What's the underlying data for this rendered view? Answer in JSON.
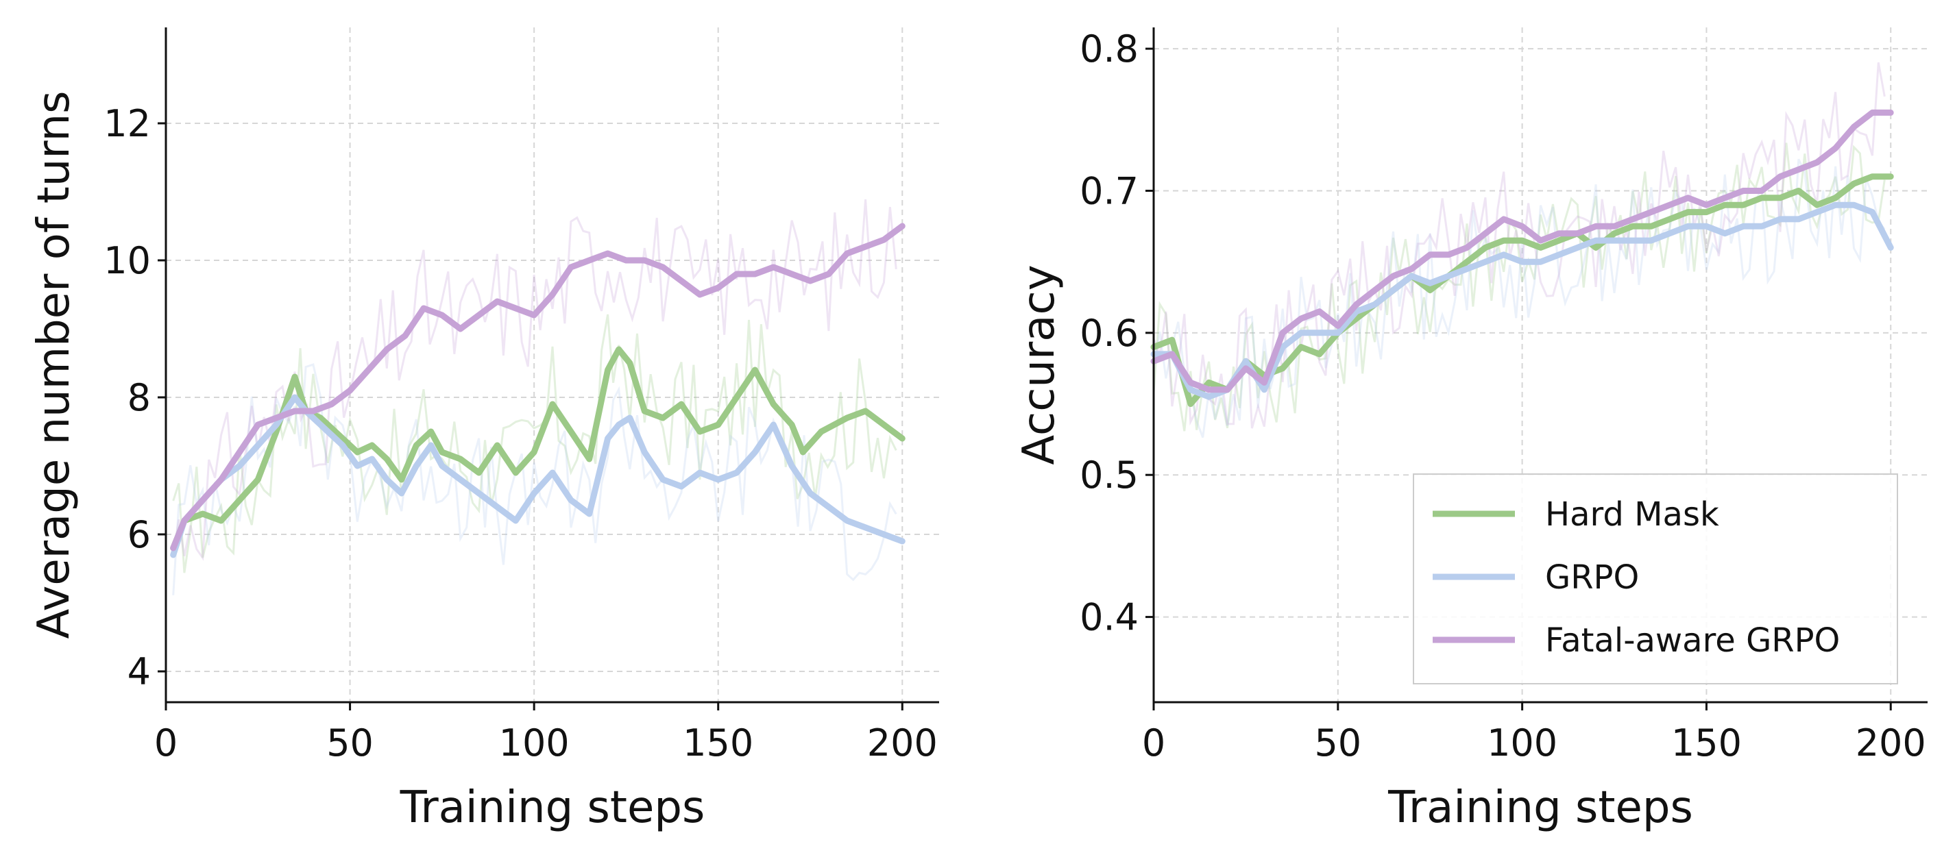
{
  "chart_data": [
    {
      "type": "line",
      "xlabel": "Training steps",
      "ylabel": "Average number of turns",
      "xlim": [
        0,
        210
      ],
      "ylim": [
        3.55,
        13.4
      ],
      "xticks": [
        0,
        50,
        100,
        150,
        200
      ],
      "yticks": [
        4,
        6,
        8,
        10,
        12
      ],
      "grid": true,
      "series": [
        {
          "name": "Hard Mask",
          "color": "#9cc987",
          "x": [
            2,
            5,
            10,
            15,
            20,
            25,
            30,
            35,
            38,
            42,
            48,
            52,
            56,
            60,
            64,
            68,
            72,
            75,
            80,
            85,
            90,
            95,
            100,
            105,
            110,
            115,
            120,
            123,
            126,
            130,
            135,
            140,
            145,
            150,
            155,
            160,
            165,
            170,
            173,
            178,
            185,
            190,
            195,
            200
          ],
          "y": [
            5.8,
            6.2,
            6.3,
            6.2,
            6.5,
            6.8,
            7.5,
            8.3,
            7.8,
            7.7,
            7.4,
            7.2,
            7.3,
            7.1,
            6.8,
            7.3,
            7.5,
            7.2,
            7.1,
            6.9,
            7.3,
            6.9,
            7.2,
            7.9,
            7.5,
            7.1,
            8.4,
            8.7,
            8.5,
            7.8,
            7.7,
            7.9,
            7.5,
            7.6,
            8.0,
            8.4,
            7.9,
            7.6,
            7.2,
            7.5,
            7.7,
            7.8,
            7.6,
            7.4
          ]
        },
        {
          "name": "GRPO",
          "color": "#b8cded",
          "x": [
            2,
            5,
            10,
            15,
            20,
            25,
            30,
            35,
            38,
            42,
            48,
            52,
            56,
            60,
            64,
            68,
            72,
            75,
            80,
            85,
            90,
            95,
            100,
            105,
            110,
            115,
            120,
            123,
            126,
            130,
            135,
            140,
            145,
            150,
            155,
            160,
            165,
            170,
            175,
            180,
            185,
            190,
            195,
            200
          ],
          "y": [
            5.7,
            6.2,
            6.5,
            6.8,
            7.0,
            7.3,
            7.6,
            8.0,
            7.8,
            7.6,
            7.3,
            7.0,
            7.1,
            6.8,
            6.6,
            7.0,
            7.3,
            7.0,
            6.8,
            6.6,
            6.4,
            6.2,
            6.6,
            6.9,
            6.5,
            6.3,
            7.4,
            7.6,
            7.7,
            7.2,
            6.8,
            6.7,
            6.9,
            6.8,
            6.9,
            7.2,
            7.6,
            7.0,
            6.6,
            6.4,
            6.2,
            6.1,
            6.0,
            5.9
          ]
        },
        {
          "name": "Fatal-aware GRPO",
          "color": "#c6a2d6",
          "x": [
            2,
            5,
            10,
            15,
            20,
            25,
            30,
            35,
            40,
            45,
            50,
            55,
            60,
            65,
            70,
            75,
            80,
            85,
            90,
            95,
            100,
            105,
            110,
            115,
            120,
            125,
            130,
            135,
            140,
            145,
            150,
            155,
            160,
            165,
            170,
            175,
            180,
            185,
            190,
            195,
            200
          ],
          "y": [
            5.8,
            6.2,
            6.5,
            6.8,
            7.2,
            7.6,
            7.7,
            7.8,
            7.8,
            7.9,
            8.1,
            8.4,
            8.7,
            8.9,
            9.3,
            9.2,
            9.0,
            9.2,
            9.4,
            9.3,
            9.2,
            9.5,
            9.9,
            10.0,
            10.1,
            10.0,
            10.0,
            9.9,
            9.7,
            9.5,
            9.6,
            9.8,
            9.8,
            9.9,
            9.8,
            9.7,
            9.8,
            10.1,
            10.2,
            10.3,
            10.5
          ]
        }
      ]
    },
    {
      "type": "line",
      "xlabel": "Training steps",
      "ylabel": "Accuracy",
      "xlim": [
        0,
        210
      ],
      "ylim": [
        0.34,
        0.815
      ],
      "xticks": [
        0,
        50,
        100,
        150,
        200
      ],
      "yticks": [
        0.4,
        0.5,
        0.6,
        0.7,
        0.8
      ],
      "grid": true,
      "legend": "lower right",
      "series": [
        {
          "name": "Hard Mask",
          "color": "#9cc987",
          "x": [
            0,
            5,
            10,
            15,
            20,
            25,
            30,
            35,
            40,
            45,
            50,
            55,
            60,
            65,
            70,
            75,
            80,
            85,
            90,
            95,
            100,
            105,
            110,
            115,
            120,
            125,
            130,
            135,
            140,
            145,
            150,
            155,
            160,
            165,
            170,
            175,
            180,
            185,
            190,
            195,
            200
          ],
          "y": [
            0.59,
            0.595,
            0.55,
            0.565,
            0.56,
            0.58,
            0.57,
            0.575,
            0.59,
            0.585,
            0.6,
            0.61,
            0.62,
            0.63,
            0.64,
            0.63,
            0.64,
            0.65,
            0.66,
            0.665,
            0.665,
            0.66,
            0.665,
            0.67,
            0.66,
            0.67,
            0.675,
            0.675,
            0.68,
            0.685,
            0.685,
            0.69,
            0.69,
            0.695,
            0.695,
            0.7,
            0.69,
            0.695,
            0.705,
            0.71,
            0.71
          ]
        },
        {
          "name": "GRPO",
          "color": "#b8cded",
          "x": [
            0,
            5,
            10,
            15,
            20,
            25,
            30,
            35,
            40,
            45,
            50,
            55,
            60,
            65,
            70,
            75,
            80,
            85,
            90,
            95,
            100,
            105,
            110,
            115,
            120,
            125,
            130,
            135,
            140,
            145,
            150,
            155,
            160,
            165,
            170,
            175,
            180,
            185,
            190,
            195,
            200
          ],
          "y": [
            0.585,
            0.585,
            0.56,
            0.555,
            0.56,
            0.58,
            0.56,
            0.59,
            0.6,
            0.6,
            0.6,
            0.615,
            0.62,
            0.63,
            0.64,
            0.635,
            0.64,
            0.645,
            0.65,
            0.655,
            0.65,
            0.65,
            0.655,
            0.66,
            0.665,
            0.665,
            0.665,
            0.665,
            0.67,
            0.675,
            0.675,
            0.67,
            0.675,
            0.675,
            0.68,
            0.68,
            0.685,
            0.69,
            0.69,
            0.685,
            0.66
          ]
        },
        {
          "name": "Fatal-aware GRPO",
          "color": "#c6a2d6",
          "x": [
            0,
            5,
            10,
            15,
            20,
            25,
            30,
            35,
            40,
            45,
            50,
            55,
            60,
            65,
            70,
            75,
            80,
            85,
            90,
            95,
            100,
            105,
            110,
            115,
            120,
            125,
            130,
            135,
            140,
            145,
            150,
            155,
            160,
            165,
            170,
            175,
            180,
            185,
            190,
            195,
            200
          ],
          "y": [
            0.58,
            0.585,
            0.565,
            0.56,
            0.56,
            0.575,
            0.565,
            0.6,
            0.61,
            0.615,
            0.605,
            0.62,
            0.63,
            0.64,
            0.645,
            0.655,
            0.655,
            0.66,
            0.67,
            0.68,
            0.675,
            0.665,
            0.67,
            0.67,
            0.675,
            0.675,
            0.68,
            0.685,
            0.69,
            0.695,
            0.69,
            0.695,
            0.7,
            0.7,
            0.71,
            0.715,
            0.72,
            0.73,
            0.745,
            0.755,
            0.755
          ]
        }
      ]
    }
  ]
}
